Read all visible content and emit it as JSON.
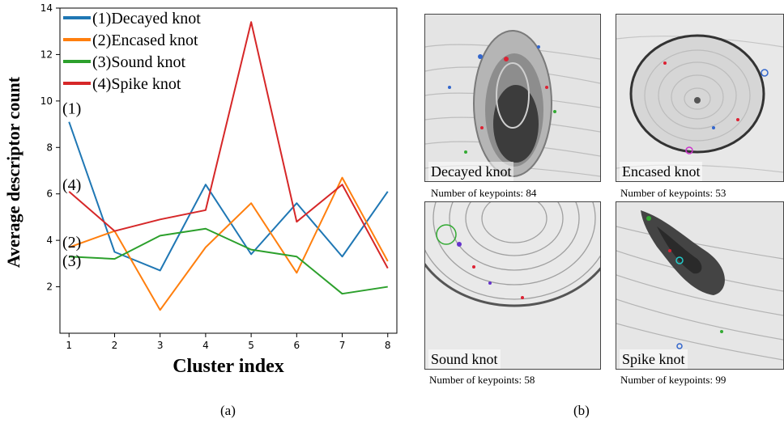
{
  "chart_data": {
    "type": "line",
    "categories": [
      1,
      2,
      3,
      4,
      5,
      6,
      7,
      8
    ],
    "xlabel": "Cluster index",
    "ylabel": "Average descriptor count",
    "ylim": [
      0,
      14
    ],
    "yticks": [
      2,
      4,
      6,
      8,
      10,
      12,
      14
    ],
    "grid": false,
    "legend": "top-left",
    "series": [
      {
        "name": "(1)Decayed knot",
        "tag": "(1)",
        "color": "#1f77b4",
        "values": [
          9.1,
          3.5,
          2.7,
          6.4,
          3.4,
          5.6,
          3.3,
          6.1
        ]
      },
      {
        "name": "(2)Encased knot",
        "tag": "(2)",
        "color": "#ff7f0e",
        "values": [
          3.7,
          4.4,
          1.0,
          3.7,
          5.6,
          2.6,
          6.7,
          3.1
        ]
      },
      {
        "name": "(3)Sound knot",
        "tag": "(3)",
        "color": "#2ca02c",
        "values": [
          3.3,
          3.2,
          4.2,
          4.5,
          3.6,
          3.3,
          1.7,
          2.0
        ]
      },
      {
        "name": "(4)Spike knot",
        "tag": "(4)",
        "color": "#d62728",
        "values": [
          6.1,
          4.4,
          4.9,
          5.3,
          13.4,
          4.8,
          6.4,
          2.8
        ]
      }
    ]
  },
  "captions": {
    "a": "(a)",
    "b": "(b)"
  },
  "panels": [
    {
      "label": "Decayed knot",
      "keypoints": "Number of keypoints: 84"
    },
    {
      "label": "Encased knot",
      "keypoints": "Number of keypoints: 53"
    },
    {
      "label": "Sound knot",
      "keypoints": "Number of keypoints: 58"
    },
    {
      "label": "Spike knot",
      "keypoints": "Number of keypoints: 99"
    }
  ]
}
